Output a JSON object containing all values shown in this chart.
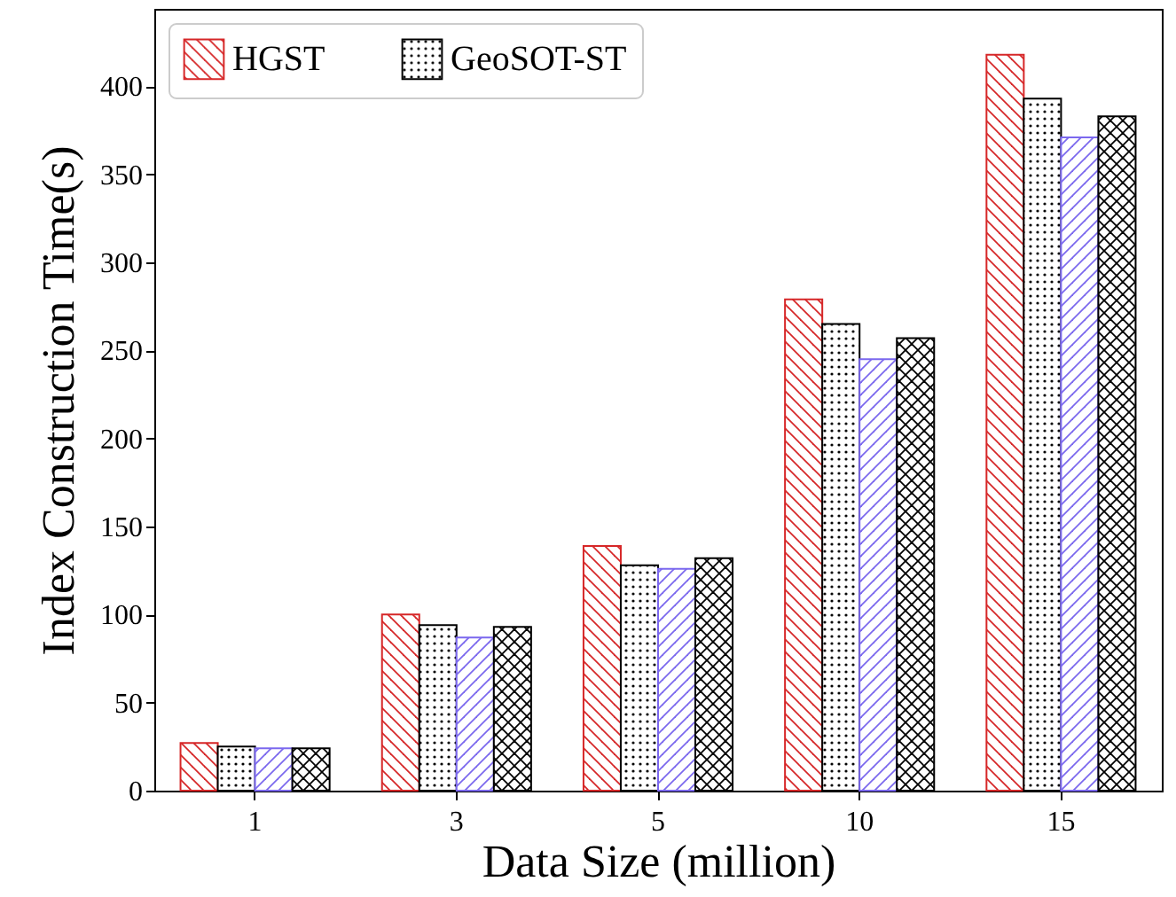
{
  "chart_data": {
    "type": "bar",
    "xlabel": "Data Size (million)",
    "ylabel": "Index Construction Time(s)",
    "categories": [
      "1",
      "3",
      "5",
      "10",
      "15"
    ],
    "series": [
      {
        "name": "HGST",
        "color": "#d62728",
        "values": [
          27,
          100,
          139,
          279,
          418
        ]
      },
      {
        "name": "GeoSOT-ST",
        "color": "#000000",
        "values": [
          25,
          94,
          128,
          265,
          393
        ]
      },
      {
        "color": "#7b68ee",
        "values": [
          24,
          87,
          126,
          245,
          371
        ]
      },
      {
        "color": "#000000",
        "values": [
          24,
          93,
          132,
          257,
          383
        ]
      }
    ],
    "ylim": [
      0,
      444
    ],
    "yticks": [
      0,
      50,
      100,
      150,
      200,
      250,
      300,
      350,
      400
    ],
    "grid": false,
    "legend": "top left"
  }
}
